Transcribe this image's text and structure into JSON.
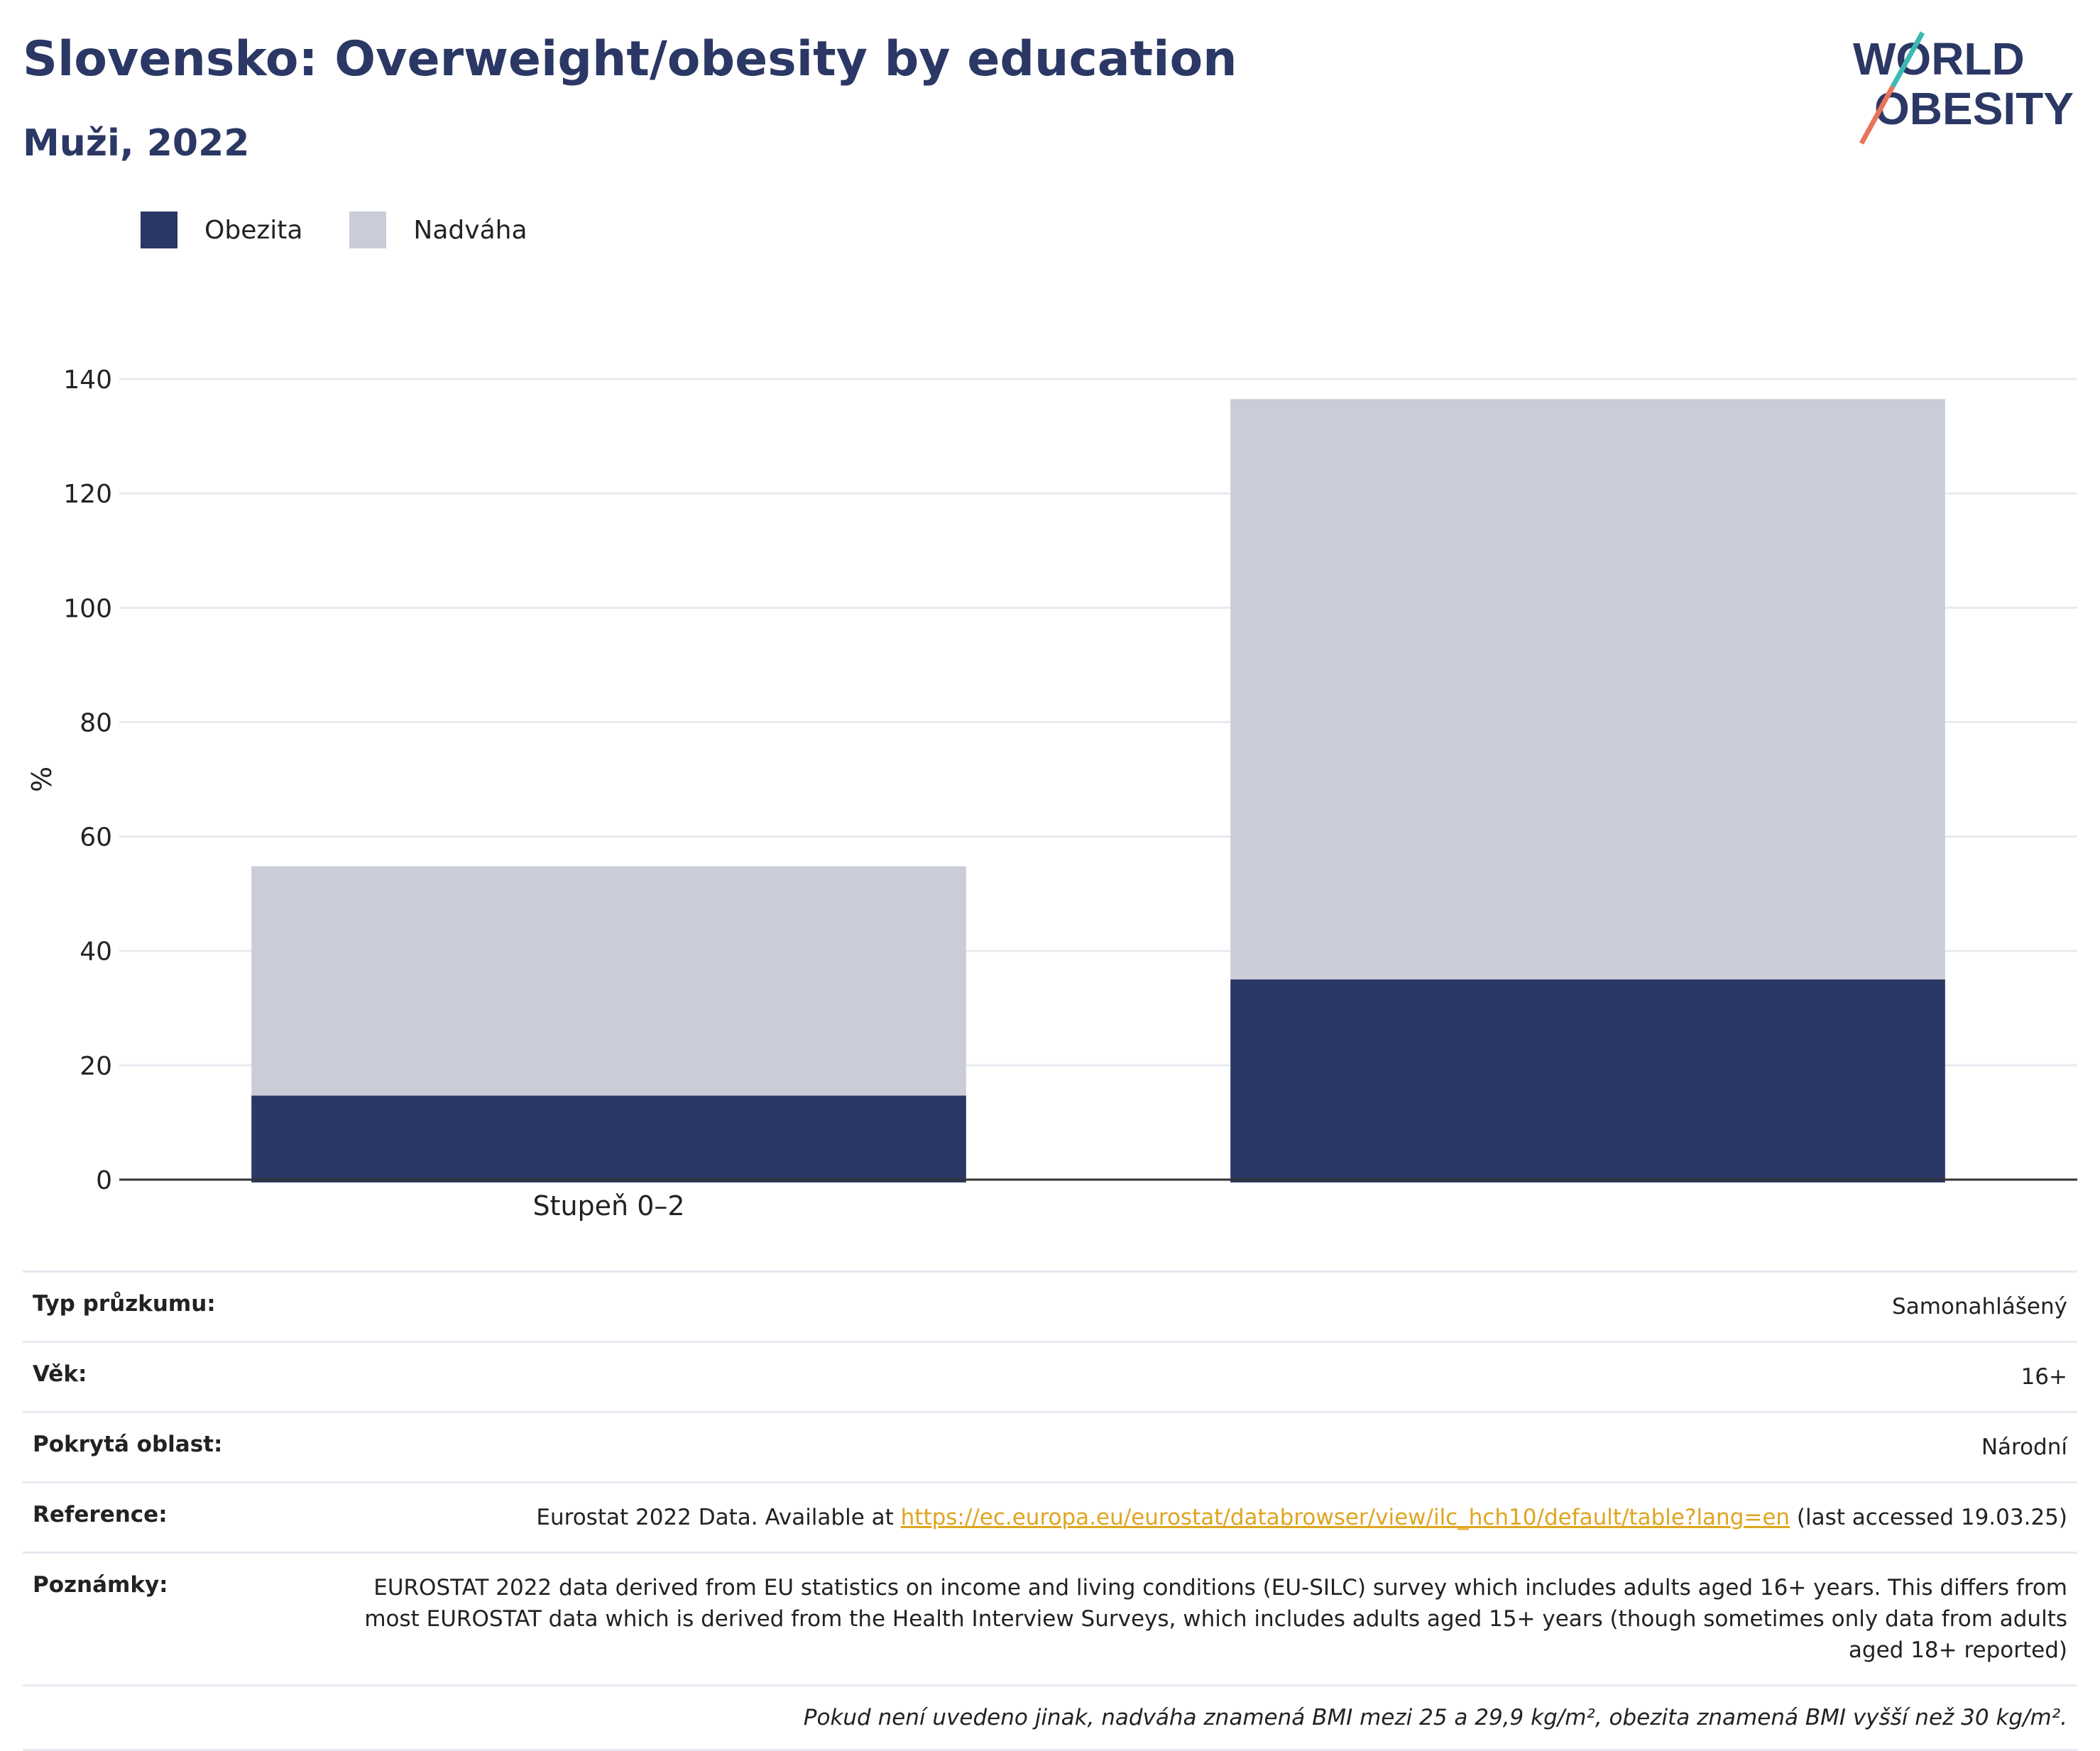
{
  "header": {
    "title": "Slovensko: Overweight/obesity by education",
    "subtitle": "Muži, 2022",
    "logo_text_line1": "WORLD",
    "logo_text_line2": "OBESITY"
  },
  "legend": [
    {
      "label": "Obezita",
      "color": "#2b3764"
    },
    {
      "label": "Nadváha",
      "color": "#cacdd8"
    }
  ],
  "chart_data": {
    "type": "bar",
    "stacked": true,
    "categories": [
      "Stupeň 0–2",
      ""
    ],
    "series": [
      {
        "name": "Obezita",
        "color": "#2b3764",
        "values": [
          14.7,
          35.0
        ]
      },
      {
        "name": "Nadváha",
        "color": "#cacdd8",
        "values": [
          40.1,
          101.5
        ]
      }
    ],
    "ylabel": "%",
    "ylim": [
      0,
      140
    ],
    "yticks": [
      0,
      20,
      40,
      60,
      80,
      100,
      120,
      140
    ],
    "grid": true,
    "legend_position": "top-left"
  },
  "info": {
    "survey_type_label": "Typ průzkumu:",
    "survey_type_value": "Samonahlášený",
    "age_label": "Věk:",
    "age_value": "16+",
    "area_label": "Pokrytá oblast:",
    "area_value": "Národní",
    "reference_label": "Reference:",
    "reference_prefix": "Eurostat 2022 Data. Available at ",
    "reference_link": "https://ec.europa.eu/eurostat/databrowser/view/ilc_hch10/default/table?lang=en",
    "reference_suffix": " (last accessed 19.03.25)",
    "notes_label": "Poznámky:",
    "notes_value": "EUROSTAT 2022 data derived from EU statistics on income and living conditions (EU-SILC) survey which includes adults aged 16+ years. This differs from most EUROSTAT data which is derived from the Health Interview Surveys, which includes adults aged 15+ years (though sometimes only data from adults aged 18+ reported)",
    "footnote": "Pokud není uvedeno jinak, nadváha znamená BMI mezi 25 a 29,9 kg/m², obezita znamená BMI vyšší než 30 kg/m²."
  }
}
